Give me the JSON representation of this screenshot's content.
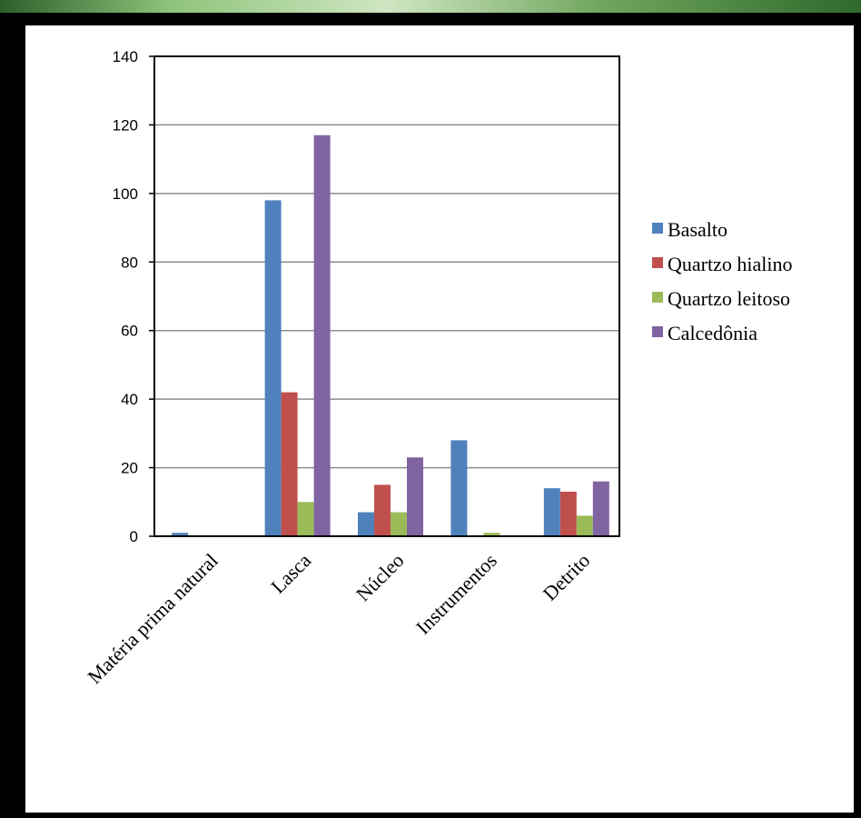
{
  "chart_data": {
    "type": "bar",
    "title": "",
    "xlabel": "",
    "ylabel": "",
    "ylim": [
      0,
      140
    ],
    "yticks": [
      0,
      20,
      40,
      60,
      80,
      100,
      120,
      140
    ],
    "grid": true,
    "legend_position": "right",
    "categories": [
      "Matéria prima natural",
      "Lasca",
      "Núcleo",
      "Instrumentos",
      "Detrito"
    ],
    "series": [
      {
        "name": "Basalto",
        "color": "#4f81bd",
        "values": [
          1,
          98,
          7,
          28,
          14
        ]
      },
      {
        "name": "Quartzo hialino",
        "color": "#c0504d",
        "values": [
          0,
          42,
          15,
          0,
          13
        ]
      },
      {
        "name": "Quartzo leitoso",
        "color": "#9bbb59",
        "values": [
          0,
          10,
          7,
          1,
          6
        ]
      },
      {
        "name": "Calcedônia",
        "color": "#8064a2",
        "values": [
          0,
          117,
          23,
          0,
          16
        ]
      }
    ]
  }
}
